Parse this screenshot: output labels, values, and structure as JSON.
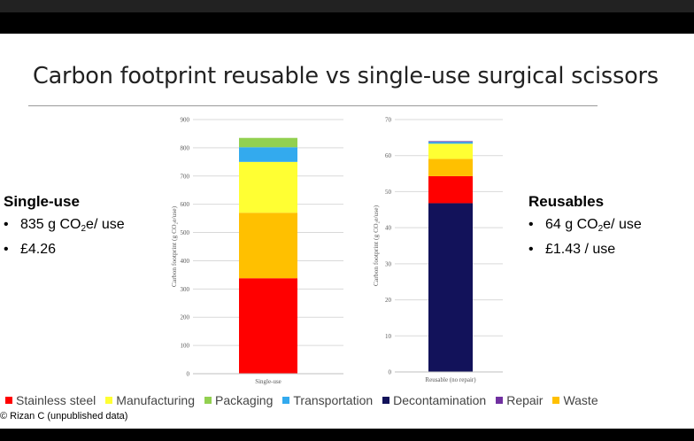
{
  "slide": {
    "title": "Carbon footprint reusable vs single-use surgical scissors",
    "credit": "© Rizan C (unpublished data)"
  },
  "left_panel": {
    "heading": "Single-use",
    "items": [
      {
        "pre": "835 g CO",
        "sub": "2",
        "post": "e/ use"
      },
      {
        "pre": "£4.26",
        "sub": "",
        "post": ""
      }
    ]
  },
  "right_panel": {
    "heading": "Reusables",
    "items": [
      {
        "pre": "64 g CO",
        "sub": "2",
        "post": "e/ use"
      },
      {
        "pre": "£1.43  / use",
        "sub": "",
        "post": ""
      }
    ]
  },
  "legend": [
    {
      "label": "Stainless steel",
      "color": "#ff0000"
    },
    {
      "label": "Manufacturing",
      "color": "#ffff33"
    },
    {
      "label": "Packaging",
      "color": "#92d050"
    },
    {
      "label": "Transportation",
      "color": "#33aaee"
    },
    {
      "label": "Decontamination",
      "color": "#12125a"
    },
    {
      "label": "Repair",
      "color": "#7030a0"
    },
    {
      "label": "Waste",
      "color": "#ffc000"
    }
  ],
  "chart_data": [
    {
      "type": "bar",
      "stacked": true,
      "categories": [
        "Single-use"
      ],
      "ylabel": "Carbon footprint (g CO₂e/use)",
      "ylim": [
        0,
        900
      ],
      "yticks": [
        0,
        100,
        200,
        300,
        400,
        500,
        600,
        700,
        800,
        900
      ],
      "grid": true,
      "series": [
        {
          "name": "Stainless steel",
          "color": "#ff0000",
          "values": [
            338
          ]
        },
        {
          "name": "Waste",
          "color": "#ffc000",
          "values": [
            232
          ]
        },
        {
          "name": "Manufacturing",
          "color": "#ffff33",
          "values": [
            180
          ]
        },
        {
          "name": "Transportation",
          "color": "#33aaee",
          "values": [
            52
          ]
        },
        {
          "name": "Packaging",
          "color": "#92d050",
          "values": [
            33
          ]
        }
      ]
    },
    {
      "type": "bar",
      "stacked": true,
      "categories": [
        "Reusable (no repair)"
      ],
      "ylabel": "Carbon footprint (g CO₂e/use)",
      "ylim": [
        0,
        70
      ],
      "yticks": [
        0,
        10,
        20,
        30,
        40,
        50,
        60,
        70
      ],
      "grid": true,
      "series": [
        {
          "name": "Decontamination",
          "color": "#12125a",
          "values": [
            46.8
          ]
        },
        {
          "name": "Stainless steel",
          "color": "#ff0000",
          "values": [
            7.5
          ]
        },
        {
          "name": "Waste",
          "color": "#ffc000",
          "values": [
            4.8
          ]
        },
        {
          "name": "Manufacturing",
          "color": "#ffff33",
          "values": [
            4.2
          ]
        },
        {
          "name": "Transportation",
          "color": "#33aaee",
          "values": [
            0.5
          ]
        },
        {
          "name": "Repair",
          "color": "#7030a0",
          "values": [
            0.2
          ]
        }
      ]
    }
  ]
}
